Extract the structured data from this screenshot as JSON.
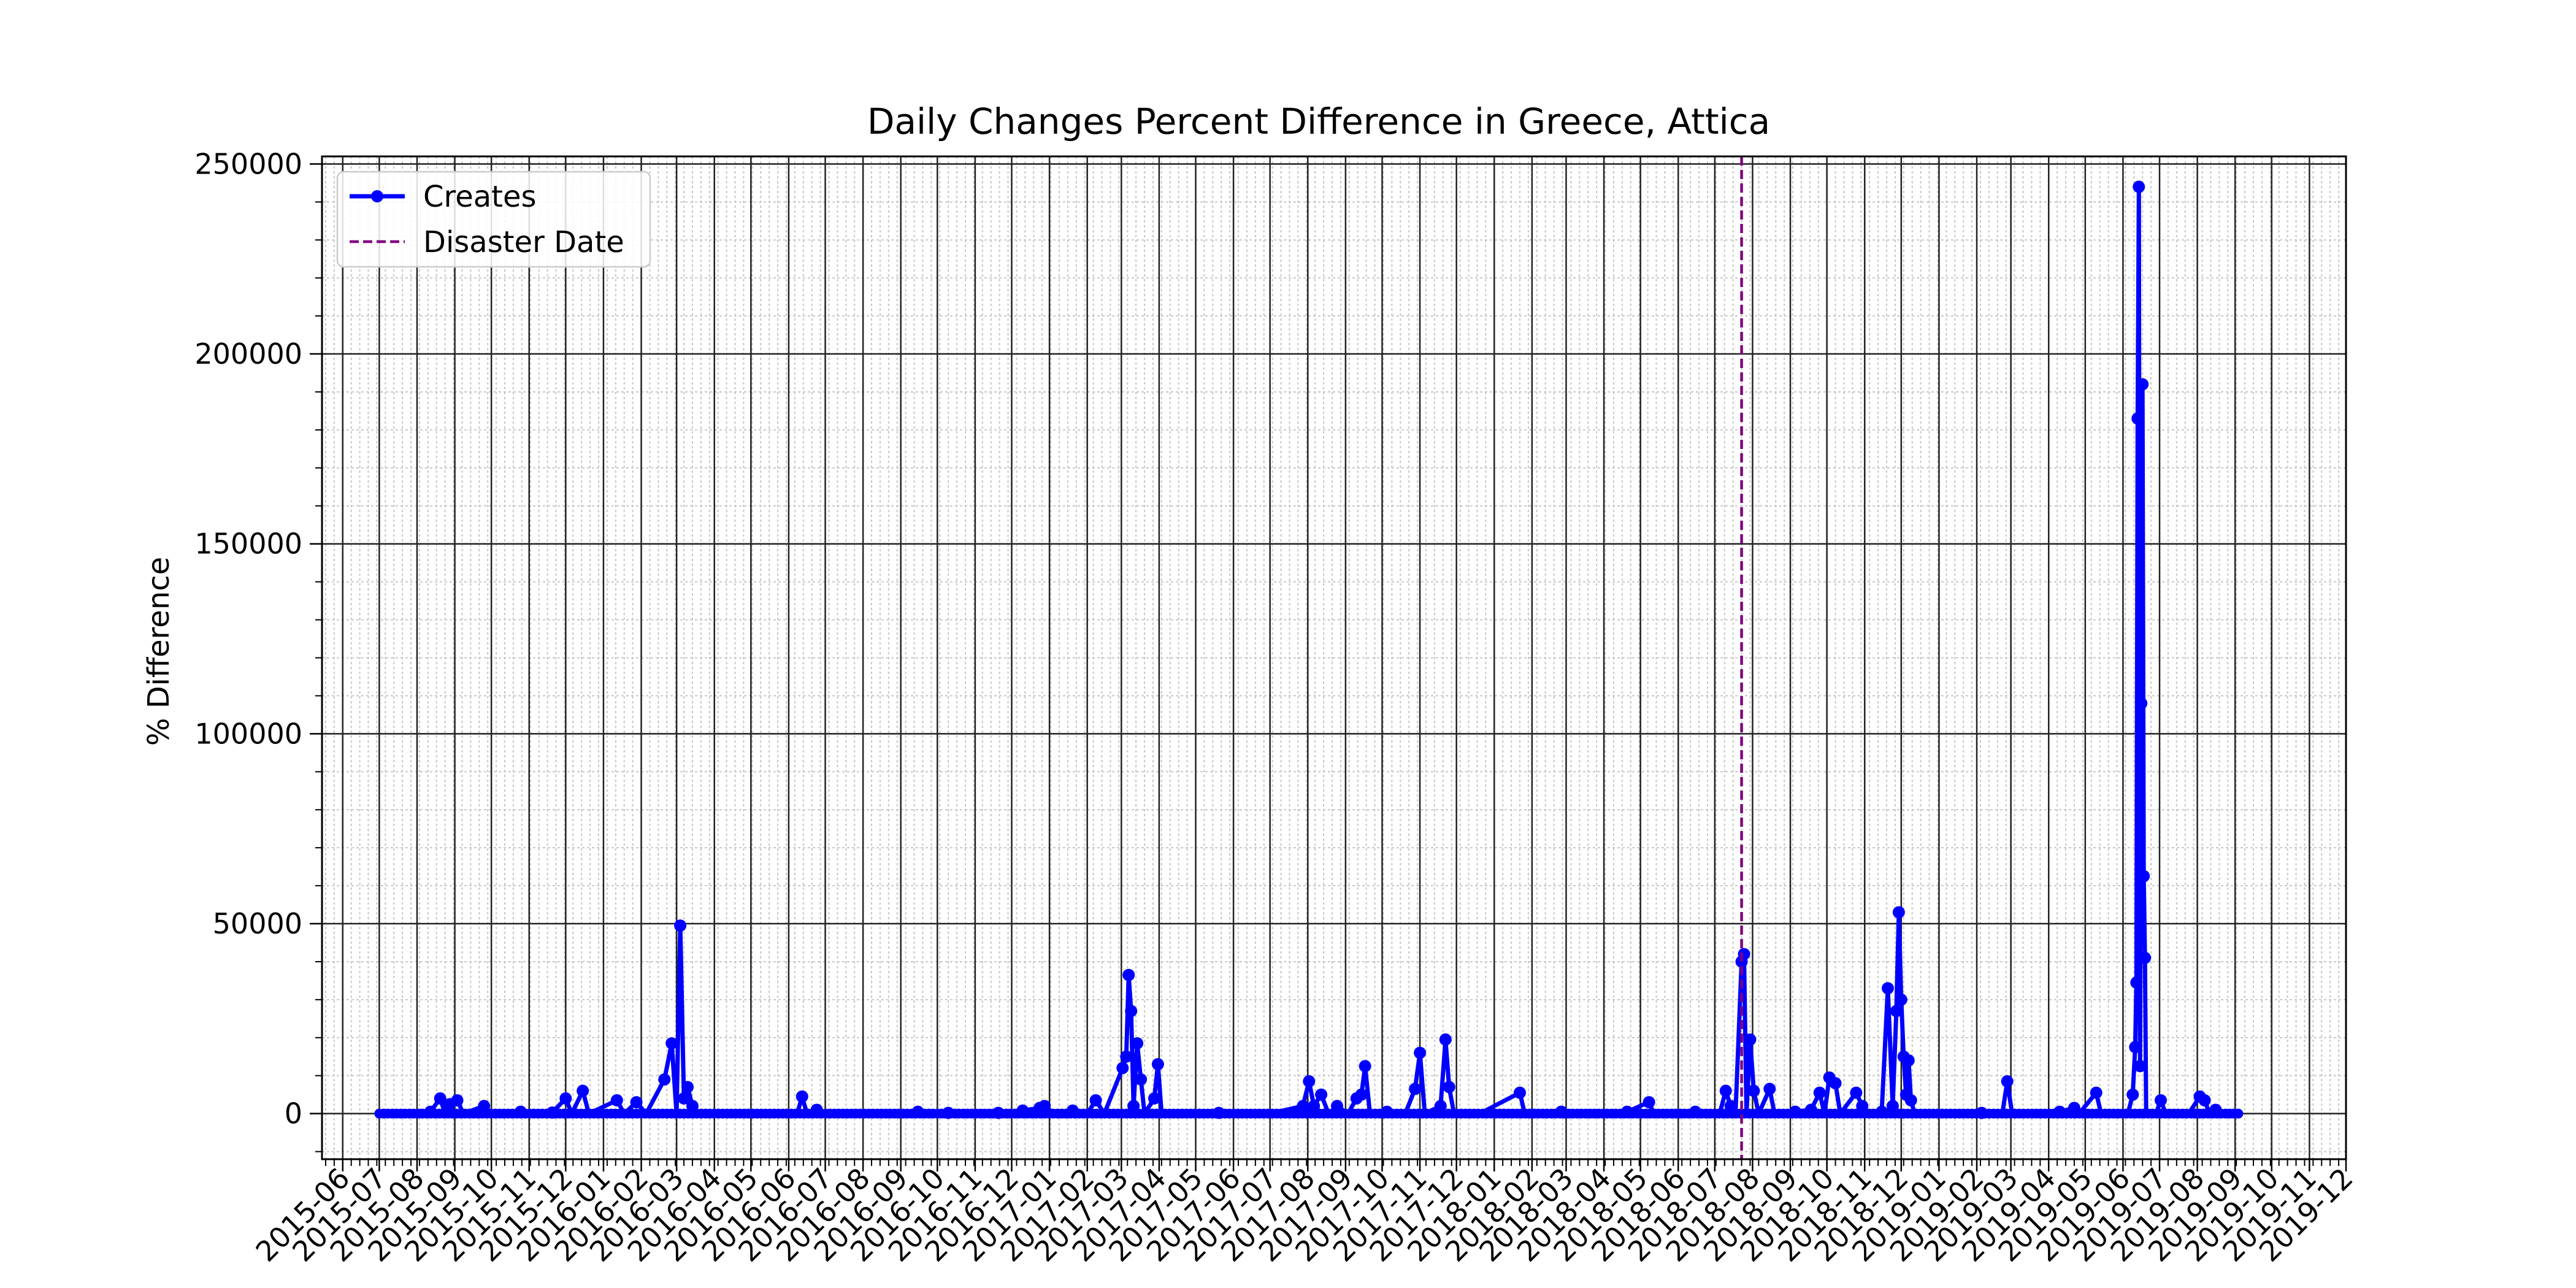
{
  "chart_data": {
    "type": "line",
    "title": "Daily Changes Percent Difference in Greece, Attica",
    "xlabel": "",
    "ylabel": "% Difference",
    "ylim": [
      -12000,
      252000
    ],
    "xlim": [
      "2015-05-15",
      "2019-12-01"
    ],
    "y_ticks": [
      0,
      50000,
      100000,
      150000,
      200000,
      250000
    ],
    "x_ticks": [
      "2015-06",
      "2015-07",
      "2015-08",
      "2015-09",
      "2015-10",
      "2015-11",
      "2015-12",
      "2016-01",
      "2016-02",
      "2016-03",
      "2016-04",
      "2016-05",
      "2016-06",
      "2016-07",
      "2016-08",
      "2016-09",
      "2016-10",
      "2016-11",
      "2016-12",
      "2017-01",
      "2017-02",
      "2017-03",
      "2017-04",
      "2017-05",
      "2017-06",
      "2017-07",
      "2017-08",
      "2017-09",
      "2017-10",
      "2017-11",
      "2017-12",
      "2018-01",
      "2018-02",
      "2018-03",
      "2018-04",
      "2018-05",
      "2018-06",
      "2018-07",
      "2018-08",
      "2018-09",
      "2018-10",
      "2018-11",
      "2018-12",
      "2019-01",
      "2019-02",
      "2019-03",
      "2019-04",
      "2019-05",
      "2019-06",
      "2019-07",
      "2019-08",
      "2019-09",
      "2019-10",
      "2019-11",
      "2019-12"
    ],
    "grid": true,
    "legend_position": "upper left",
    "disaster_date": "2018-07-23",
    "series": [
      {
        "name": "Creates",
        "color": "#0000ff",
        "points": [
          [
            "2015-07-01",
            0
          ],
          [
            "2015-07-15",
            0
          ],
          [
            "2015-08-01",
            0
          ],
          [
            "2015-08-12",
            500
          ],
          [
            "2015-08-20",
            4000
          ],
          [
            "2015-08-24",
            0
          ],
          [
            "2015-08-28",
            2500
          ],
          [
            "2015-09-03",
            3500
          ],
          [
            "2015-09-08",
            0
          ],
          [
            "2015-09-25",
            2000
          ],
          [
            "2015-10-02",
            0
          ],
          [
            "2015-10-25",
            500
          ],
          [
            "2015-11-20",
            300
          ],
          [
            "2015-12-01",
            4000
          ],
          [
            "2015-12-06",
            0
          ],
          [
            "2015-12-15",
            6000
          ],
          [
            "2015-12-20",
            0
          ],
          [
            "2016-01-12",
            3500
          ],
          [
            "2016-01-18",
            0
          ],
          [
            "2016-01-28",
            3000
          ],
          [
            "2016-02-05",
            0
          ],
          [
            "2016-02-20",
            9000
          ],
          [
            "2016-02-26",
            18500
          ],
          [
            "2016-03-01",
            0
          ],
          [
            "2016-03-04",
            49500
          ],
          [
            "2016-03-07",
            4000
          ],
          [
            "2016-03-10",
            7000
          ],
          [
            "2016-03-14",
            2000
          ],
          [
            "2016-03-20",
            0
          ],
          [
            "2016-04-20",
            0
          ],
          [
            "2016-05-15",
            0
          ],
          [
            "2016-06-08",
            0
          ],
          [
            "2016-06-12",
            4500
          ],
          [
            "2016-06-16",
            0
          ],
          [
            "2016-06-24",
            1000
          ],
          [
            "2016-07-01",
            0
          ],
          [
            "2016-08-01",
            0
          ],
          [
            "2016-09-01",
            0
          ],
          [
            "2016-09-15",
            500
          ],
          [
            "2016-10-10",
            200
          ],
          [
            "2016-11-01",
            0
          ],
          [
            "2016-11-20",
            200
          ],
          [
            "2016-12-10",
            800
          ],
          [
            "2016-12-24",
            1500
          ],
          [
            "2016-12-28",
            2000
          ],
          [
            "2017-01-05",
            0
          ],
          [
            "2017-01-20",
            800
          ],
          [
            "2017-02-01",
            0
          ],
          [
            "2017-02-08",
            3500
          ],
          [
            "2017-02-15",
            0
          ],
          [
            "2017-03-02",
            12000
          ],
          [
            "2017-03-05",
            15000
          ],
          [
            "2017-03-07",
            36500
          ],
          [
            "2017-03-09",
            27000
          ],
          [
            "2017-03-11",
            2000
          ],
          [
            "2017-03-14",
            18500
          ],
          [
            "2017-03-17",
            9000
          ],
          [
            "2017-03-20",
            0
          ],
          [
            "2017-03-28",
            4000
          ],
          [
            "2017-03-31",
            13000
          ],
          [
            "2017-04-03",
            0
          ],
          [
            "2017-05-01",
            0
          ],
          [
            "2017-05-20",
            200
          ],
          [
            "2017-06-10",
            0
          ],
          [
            "2017-07-01",
            0
          ],
          [
            "2017-07-28",
            2000
          ],
          [
            "2017-08-02",
            8500
          ],
          [
            "2017-08-06",
            2000
          ],
          [
            "2017-08-12",
            5000
          ],
          [
            "2017-08-18",
            0
          ],
          [
            "2017-08-25",
            2000
          ],
          [
            "2017-09-03",
            0
          ],
          [
            "2017-09-10",
            4000
          ],
          [
            "2017-09-14",
            5000
          ],
          [
            "2017-09-17",
            12500
          ],
          [
            "2017-09-21",
            0
          ],
          [
            "2017-10-05",
            500
          ],
          [
            "2017-10-20",
            0
          ],
          [
            "2017-10-28",
            6500
          ],
          [
            "2017-11-01",
            16000
          ],
          [
            "2017-11-05",
            0
          ],
          [
            "2017-11-18",
            2000
          ],
          [
            "2017-11-22",
            19500
          ],
          [
            "2017-11-25",
            7000
          ],
          [
            "2017-11-29",
            0
          ],
          [
            "2017-12-20",
            0
          ],
          [
            "2018-01-22",
            5500
          ],
          [
            "2018-01-26",
            0
          ],
          [
            "2018-02-10",
            0
          ],
          [
            "2018-02-25",
            500
          ],
          [
            "2018-03-20",
            0
          ],
          [
            "2018-04-20",
            500
          ],
          [
            "2018-05-08",
            3000
          ],
          [
            "2018-05-12",
            0
          ],
          [
            "2018-06-15",
            500
          ],
          [
            "2018-07-05",
            0
          ],
          [
            "2018-07-10",
            6000
          ],
          [
            "2018-07-14",
            2000
          ],
          [
            "2018-07-18",
            0
          ],
          [
            "2018-07-23",
            40000
          ],
          [
            "2018-07-25",
            42000
          ],
          [
            "2018-07-27",
            0
          ],
          [
            "2018-07-30",
            19500
          ],
          [
            "2018-08-02",
            6000
          ],
          [
            "2018-08-06",
            0
          ],
          [
            "2018-08-15",
            6500
          ],
          [
            "2018-08-19",
            0
          ],
          [
            "2018-09-05",
            500
          ],
          [
            "2018-09-18",
            1000
          ],
          [
            "2018-09-25",
            5500
          ],
          [
            "2018-09-29",
            0
          ],
          [
            "2018-10-03",
            9500
          ],
          [
            "2018-10-08",
            8000
          ],
          [
            "2018-10-12",
            0
          ],
          [
            "2018-10-25",
            5500
          ],
          [
            "2018-10-30",
            2000
          ],
          [
            "2018-11-04",
            0
          ],
          [
            "2018-11-15",
            500
          ],
          [
            "2018-11-20",
            33000
          ],
          [
            "2018-11-24",
            2000
          ],
          [
            "2018-11-27",
            27000
          ],
          [
            "2018-11-29",
            53000
          ],
          [
            "2018-12-01",
            30000
          ],
          [
            "2018-12-03",
            15000
          ],
          [
            "2018-12-05",
            5000
          ],
          [
            "2018-12-07",
            14000
          ],
          [
            "2018-12-09",
            3500
          ],
          [
            "2018-12-12",
            0
          ],
          [
            "2019-01-15",
            0
          ],
          [
            "2019-02-05",
            200
          ],
          [
            "2019-02-22",
            0
          ],
          [
            "2019-02-26",
            8500
          ],
          [
            "2019-03-02",
            0
          ],
          [
            "2019-04-10",
            500
          ],
          [
            "2019-04-22",
            1500
          ],
          [
            "2019-04-26",
            0
          ],
          [
            "2019-05-10",
            5500
          ],
          [
            "2019-05-14",
            0
          ],
          [
            "2019-06-05",
            0
          ],
          [
            "2019-06-09",
            5000
          ],
          [
            "2019-06-11",
            17500
          ],
          [
            "2019-06-12",
            34500
          ],
          [
            "2019-06-13",
            183000
          ],
          [
            "2019-06-14",
            244000
          ],
          [
            "2019-06-15",
            12500
          ],
          [
            "2019-06-16",
            108000
          ],
          [
            "2019-06-17",
            192000
          ],
          [
            "2019-06-18",
            62500
          ],
          [
            "2019-06-19",
            41000
          ],
          [
            "2019-06-20",
            0
          ],
          [
            "2019-06-28",
            0
          ],
          [
            "2019-07-02",
            3500
          ],
          [
            "2019-07-06",
            0
          ],
          [
            "2019-07-25",
            0
          ],
          [
            "2019-08-03",
            4500
          ],
          [
            "2019-08-07",
            3500
          ],
          [
            "2019-08-11",
            0
          ],
          [
            "2019-08-16",
            1000
          ],
          [
            "2019-08-22",
            0
          ],
          [
            "2019-09-06",
            0
          ]
        ]
      }
    ],
    "annotations": [
      {
        "type": "vline",
        "x": "2018-07-23",
        "name": "Disaster Date",
        "style": "dashed",
        "color": "#800080"
      }
    ],
    "legend": [
      {
        "label": "Creates",
        "color": "#0000ff",
        "style": "line-marker"
      },
      {
        "label": "Disaster Date",
        "color": "#800080",
        "style": "dashed"
      }
    ]
  }
}
